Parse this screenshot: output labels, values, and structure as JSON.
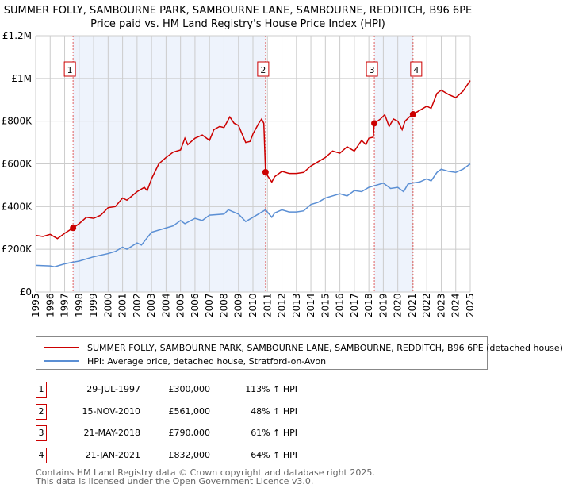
{
  "header": {
    "title": "SUMMER FOLLY, SAMBOURNE PARK, SAMBOURNE LANE, SAMBOURNE, REDDITCH, B96 6PE",
    "subtitle": "Price paid vs. HM Land Registry's House Price Index (HPI)"
  },
  "chart_data": {
    "type": "line",
    "title": "SUMMER FOLLY, SAMBOURNE PARK, SAMBOURNE LANE, SAMBOURNE, REDDITCH, B96 6PE",
    "subtitle": "Price paid vs. HM Land Registry's House Price Index (HPI)",
    "xlim": [
      1995,
      2025
    ],
    "ylim": [
      0,
      1200000
    ],
    "x_ticks": [
      "1995",
      "1996",
      "1997",
      "1998",
      "1999",
      "2000",
      "2001",
      "2002",
      "2003",
      "2004",
      "2005",
      "2006",
      "2007",
      "2008",
      "2009",
      "2010",
      "2011",
      "2012",
      "2013",
      "2014",
      "2015",
      "2016",
      "2017",
      "2018",
      "2019",
      "2020",
      "2021",
      "2022",
      "2023",
      "2024",
      "2025"
    ],
    "y_ticks": [
      {
        "v": 0,
        "label": "£0"
      },
      {
        "v": 200000,
        "label": "£200K"
      },
      {
        "v": 400000,
        "label": "£400K"
      },
      {
        "v": 600000,
        "label": "£600K"
      },
      {
        "v": 800000,
        "label": "£800K"
      },
      {
        "v": 1000000,
        "label": "£1M"
      },
      {
        "v": 1200000,
        "label": "£1.2M"
      }
    ],
    "grid": true,
    "shaded_ranges": [
      [
        1997.58,
        2010.87
      ],
      [
        2018.38,
        2021.05
      ]
    ],
    "series": [
      {
        "name": "SUMMER FOLLY, SAMBOURNE PARK, SAMBOURNE LANE, SAMBOURNE, REDDITCH, B96 6PE (detached house)",
        "color": "#cc0000",
        "points": [
          [
            1995,
            265
          ],
          [
            1995.5,
            260
          ],
          [
            1996,
            270
          ],
          [
            1996.5,
            250
          ],
          [
            1997,
            275
          ],
          [
            1997.58,
            300
          ],
          [
            1998,
            320
          ],
          [
            1998.5,
            350
          ],
          [
            1999,
            345
          ],
          [
            1999.5,
            360
          ],
          [
            2000,
            395
          ],
          [
            2000.5,
            400
          ],
          [
            2001,
            440
          ],
          [
            2001.3,
            430
          ],
          [
            2002,
            470
          ],
          [
            2002.5,
            490
          ],
          [
            2002.7,
            475
          ],
          [
            2003,
            530
          ],
          [
            2003.5,
            600
          ],
          [
            2004,
            630
          ],
          [
            2004.5,
            655
          ],
          [
            2005,
            665
          ],
          [
            2005.3,
            720
          ],
          [
            2005.5,
            690
          ],
          [
            2006,
            720
          ],
          [
            2006.5,
            735
          ],
          [
            2007,
            710
          ],
          [
            2007.3,
            760
          ],
          [
            2007.7,
            775
          ],
          [
            2008,
            770
          ],
          [
            2008.4,
            820
          ],
          [
            2008.7,
            790
          ],
          [
            2009,
            780
          ],
          [
            2009.5,
            700
          ],
          [
            2009.8,
            705
          ],
          [
            2010,
            740
          ],
          [
            2010.4,
            790
          ],
          [
            2010.6,
            810
          ],
          [
            2010.75,
            790
          ],
          [
            2010.87,
            561
          ],
          [
            2011,
            545
          ],
          [
            2011.3,
            515
          ],
          [
            2011.5,
            540
          ],
          [
            2012,
            565
          ],
          [
            2012.5,
            555
          ],
          [
            2013,
            555
          ],
          [
            2013.5,
            560
          ],
          [
            2014,
            590
          ],
          [
            2014.5,
            610
          ],
          [
            2015,
            630
          ],
          [
            2015.5,
            660
          ],
          [
            2016,
            650
          ],
          [
            2016.5,
            680
          ],
          [
            2017,
            660
          ],
          [
            2017.5,
            710
          ],
          [
            2017.8,
            690
          ],
          [
            2018,
            720
          ],
          [
            2018.3,
            725
          ],
          [
            2018.38,
            790
          ],
          [
            2018.8,
            810
          ],
          [
            2019.1,
            830
          ],
          [
            2019.4,
            775
          ],
          [
            2019.7,
            810
          ],
          [
            2020,
            800
          ],
          [
            2020.3,
            760
          ],
          [
            2020.5,
            800
          ],
          [
            2020.8,
            820
          ],
          [
            2021.05,
            832
          ],
          [
            2021.5,
            850
          ],
          [
            2022,
            870
          ],
          [
            2022.3,
            860
          ],
          [
            2022.7,
            930
          ],
          [
            2023,
            945
          ],
          [
            2023.5,
            925
          ],
          [
            2024,
            910
          ],
          [
            2024.5,
            940
          ],
          [
            2025,
            990
          ]
        ]
      },
      {
        "name": "HPI: Average price, detached house, Stratford-on-Avon",
        "color": "#5b8fd4",
        "points": [
          [
            1995,
            125
          ],
          [
            1996,
            122
          ],
          [
            1996.3,
            118
          ],
          [
            1997,
            132
          ],
          [
            1997.58,
            140
          ],
          [
            1998,
            145
          ],
          [
            1999,
            165
          ],
          [
            2000,
            180
          ],
          [
            2000.5,
            190
          ],
          [
            2001,
            210
          ],
          [
            2001.3,
            200
          ],
          [
            2002,
            230
          ],
          [
            2002.3,
            220
          ],
          [
            2003,
            280
          ],
          [
            2004,
            300
          ],
          [
            2004.5,
            310
          ],
          [
            2005,
            335
          ],
          [
            2005.3,
            320
          ],
          [
            2006,
            345
          ],
          [
            2006.5,
            335
          ],
          [
            2007,
            360
          ],
          [
            2008,
            365
          ],
          [
            2008.3,
            385
          ],
          [
            2009,
            365
          ],
          [
            2009.5,
            330
          ],
          [
            2010,
            350
          ],
          [
            2010.87,
            385
          ],
          [
            2011.3,
            350
          ],
          [
            2011.5,
            370
          ],
          [
            2012,
            385
          ],
          [
            2012.5,
            375
          ],
          [
            2013,
            375
          ],
          [
            2013.5,
            380
          ],
          [
            2014,
            410
          ],
          [
            2014.5,
            420
          ],
          [
            2015,
            440
          ],
          [
            2016,
            460
          ],
          [
            2016.5,
            450
          ],
          [
            2017,
            475
          ],
          [
            2017.5,
            470
          ],
          [
            2018,
            490
          ],
          [
            2018.5,
            500
          ],
          [
            2019,
            510
          ],
          [
            2019.5,
            485
          ],
          [
            2020,
            490
          ],
          [
            2020.4,
            470
          ],
          [
            2020.7,
            505
          ],
          [
            2021,
            510
          ],
          [
            2021.5,
            515
          ],
          [
            2022,
            530
          ],
          [
            2022.3,
            520
          ],
          [
            2022.7,
            560
          ],
          [
            2023,
            575
          ],
          [
            2023.5,
            565
          ],
          [
            2024,
            560
          ],
          [
            2024.5,
            575
          ],
          [
            2025,
            600
          ]
        ]
      }
    ],
    "y_unit_multiplier": 1000,
    "sales": [
      {
        "n": "1",
        "x": 1997.58,
        "y": 300
      },
      {
        "n": "2",
        "x": 2010.87,
        "y": 561
      },
      {
        "n": "3",
        "x": 2018.38,
        "y": 790
      },
      {
        "n": "4",
        "x": 2021.05,
        "y": 832
      }
    ]
  },
  "legend": {
    "property": "SUMMER FOLLY, SAMBOURNE PARK, SAMBOURNE LANE, SAMBOURNE, REDDITCH, B96 6PE (detached house)",
    "hpi": "HPI: Average price, detached house, Stratford-on-Avon"
  },
  "transactions": [
    {
      "n": "1",
      "date": "29-JUL-1997",
      "price": "£300,000",
      "hpi": "113% ↑ HPI"
    },
    {
      "n": "2",
      "date": "15-NOV-2010",
      "price": "£561,000",
      "hpi": "48% ↑ HPI"
    },
    {
      "n": "3",
      "date": "21-MAY-2018",
      "price": "£790,000",
      "hpi": "61% ↑ HPI"
    },
    {
      "n": "4",
      "date": "21-JAN-2021",
      "price": "£832,000",
      "hpi": "64% ↑ HPI"
    }
  ],
  "footer": {
    "line1": "Contains HM Land Registry data © Crown copyright and database right 2025.",
    "line2": "This data is licensed under the Open Government Licence v3.0."
  }
}
